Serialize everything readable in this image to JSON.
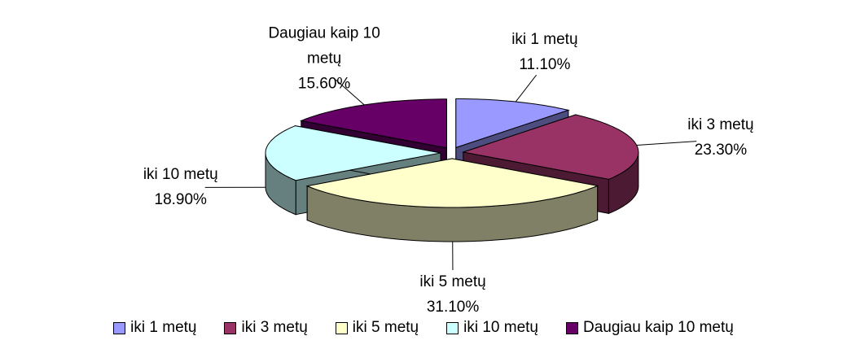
{
  "chart_data": {
    "type": "pie",
    "categories": [
      "iki 1 metų",
      "iki 3 metų",
      "iki 5 metų",
      "iki 10 metų",
      "Daugiau kaip 10 metų"
    ],
    "values": [
      11.1,
      23.3,
      31.1,
      18.9,
      15.6
    ],
    "value_labels": [
      "11.10%",
      "23.30%",
      "31.10%",
      "18.90%",
      "15.60%"
    ],
    "colors": [
      "#9999ff",
      "#993366",
      "#ffffcc",
      "#ccffff",
      "#660066"
    ],
    "legend": "bottom"
  }
}
